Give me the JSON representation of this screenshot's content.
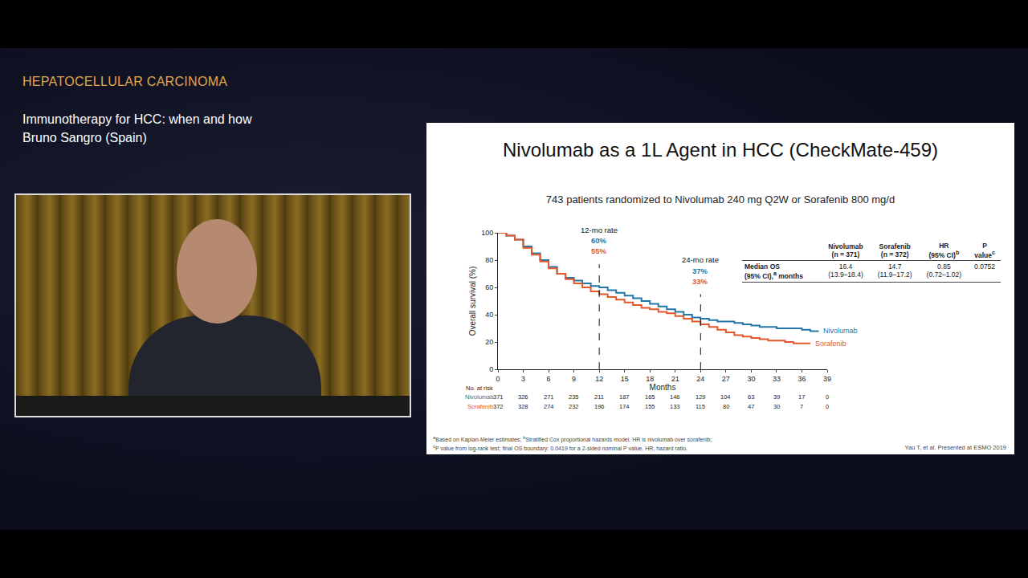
{
  "header": {
    "topic": "HEPATOCELLULAR CARCINOMA",
    "talk_title": "Immunotherapy for HCC: when and how",
    "speaker": "Bruno Sangro (Spain)"
  },
  "slide": {
    "title": "Nivolumab as a 1L Agent in HCC (CheckMate-459)",
    "subtitle": "743 patients randomized to Nivolumab 240 mg Q2W or Sorafenib 800 mg/d",
    "table": {
      "header": [
        {
          "lines": []
        },
        {
          "lines": [
            "Nivolumab",
            "(n = 371)"
          ]
        },
        {
          "lines": [
            "Sorafenib",
            "(n = 372)"
          ]
        },
        {
          "lines": [
            "HR",
            "(95% CI)"
          ],
          "sup": "b"
        },
        {
          "lines": [
            "P",
            "value"
          ],
          "sup": "c"
        }
      ],
      "rows": [
        [
          {
            "lines": [
              "Median OS",
              "(95% CI),"
            ],
            "sup": "a",
            "after": " months"
          },
          {
            "lines": [
              "16.4",
              "(13.9–18.4)"
            ]
          },
          {
            "lines": [
              "14.7",
              "(11.9–17.2)"
            ]
          },
          {
            "lines": [
              "0.85",
              "(0.72–1.02)"
            ]
          },
          {
            "lines": [
              "0.0752"
            ]
          }
        ]
      ]
    },
    "footnotes": [
      [
        {
          "sup": "a",
          "text": "Based on Kaplan-Meier estimates; "
        },
        {
          "sup": "b",
          "text": "Stratified Cox proportional hazards model. HR is nivolumab over sorafenib;"
        }
      ],
      [
        {
          "sup": "c",
          "text": "P value from log-rank test; final OS boundary: 0.0419 for a 2-sided nominal P value. HR, hazard ratio."
        }
      ]
    ],
    "citation": "Yau T, et al. Presented at ESMO 2019"
  },
  "chart_data": {
    "type": "line",
    "line_style": "step",
    "x_label": "Months",
    "y_label": "Overall survival (%)",
    "x": [
      0,
      1,
      2,
      3,
      4,
      5,
      6,
      7,
      8,
      9,
      10,
      11,
      12,
      13,
      14,
      15,
      16,
      17,
      18,
      19,
      20,
      21,
      22,
      23,
      24,
      25,
      26,
      27,
      28,
      29,
      30,
      31,
      32,
      33,
      34,
      35,
      36,
      37,
      38
    ],
    "series": [
      {
        "name": "Nivolumab",
        "color": "#2476a8",
        "values": [
          100,
          98,
          95,
          90,
          85,
          80,
          75,
          70,
          67,
          65,
          63,
          61,
          60,
          58,
          56,
          54,
          52,
          50,
          48,
          46,
          44,
          42,
          40,
          38,
          37,
          36,
          35,
          35,
          34,
          33,
          32,
          31,
          31,
          30,
          30,
          30,
          29,
          28,
          28
        ]
      },
      {
        "name": "Sorafenib",
        "color": "#e3572b",
        "values": [
          100,
          98,
          95,
          89,
          84,
          79,
          74,
          70,
          66,
          63,
          60,
          57,
          55,
          53,
          51,
          49,
          47,
          45,
          44,
          42,
          41,
          39,
          37,
          35,
          33,
          31,
          29,
          27,
          25,
          24,
          23,
          22,
          21,
          21,
          20,
          19,
          19,
          19,
          null
        ]
      }
    ],
    "xlim": [
      0,
      39
    ],
    "xticks": [
      0,
      3,
      6,
      9,
      12,
      15,
      18,
      21,
      24,
      27,
      30,
      33,
      36,
      39
    ],
    "ylim": [
      0,
      100
    ],
    "yticks": [
      0,
      20,
      40,
      60,
      80,
      100
    ],
    "grid": false,
    "legend": "none",
    "annotations": [
      {
        "x": 12,
        "label": "12-mo rate",
        "values": [
          {
            "series": "Nivolumab",
            "value": 60,
            "label": "60%"
          },
          {
            "series": "Sorafenib",
            "value": 55,
            "label": "55%"
          }
        ]
      },
      {
        "x": 24,
        "label": "24-mo rate",
        "values": [
          {
            "series": "Nivolumab",
            "value": 37,
            "label": "37%"
          },
          {
            "series": "Sorafenib",
            "value": 33,
            "label": "33%"
          }
        ]
      }
    ],
    "at_risk": {
      "label": "No. at risk",
      "x": [
        0,
        3,
        6,
        9,
        12,
        15,
        18,
        21,
        24,
        27,
        30,
        33,
        36,
        39
      ],
      "rows": [
        {
          "series": "Nivolumab",
          "values": [
            371,
            326,
            271,
            235,
            211,
            187,
            165,
            146,
            129,
            104,
            63,
            39,
            17,
            0
          ]
        },
        {
          "series": "Sorafenib",
          "values": [
            372,
            328,
            274,
            232,
            196,
            174,
            155,
            133,
            115,
            80,
            47,
            30,
            7,
            0
          ]
        }
      ]
    }
  }
}
